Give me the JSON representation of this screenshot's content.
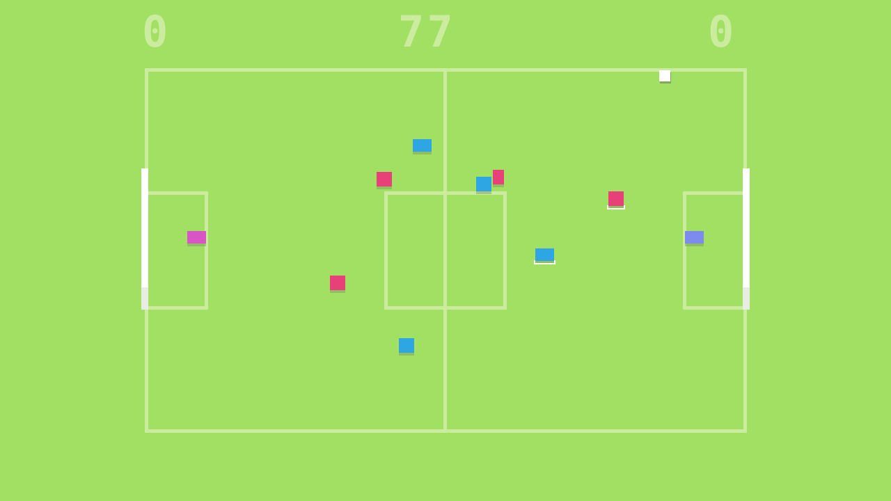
{
  "scoreboard": {
    "home_score": "0",
    "timer": "77",
    "away_score": "0"
  },
  "colors": {
    "pitch": "#a2e063",
    "lines": "#cbeb9f",
    "team_red": "#e8417a",
    "team_blue": "#2ea6e3",
    "keeper_left": "#d955c6",
    "keeper_right": "#7d8bef",
    "ball": "#ffffff"
  },
  "players": [
    {
      "team": "blue",
      "selected": false
    },
    {
      "team": "red",
      "selected": false
    },
    {
      "team": "blue",
      "selected": false
    },
    {
      "team": "red",
      "selected": false
    },
    {
      "team": "red",
      "selected": true
    },
    {
      "team": "blue",
      "selected": true
    },
    {
      "team": "red",
      "selected": false
    },
    {
      "team": "blue",
      "selected": false
    },
    {
      "team": "keeper-left",
      "selected": false
    },
    {
      "team": "keeper-right",
      "selected": false
    }
  ]
}
